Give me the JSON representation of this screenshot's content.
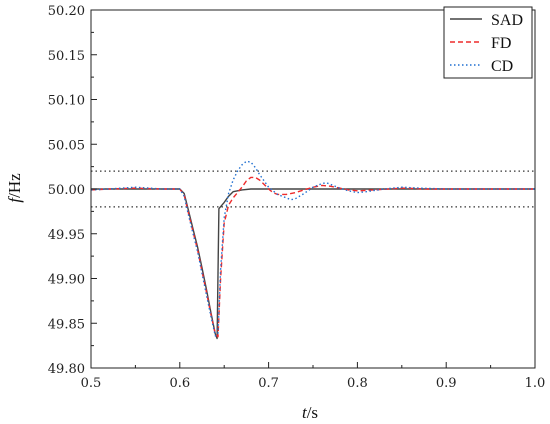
{
  "chart_data": {
    "type": "line",
    "xlabel": {
      "italic": "t",
      "unit": "/s"
    },
    "ylabel": {
      "italic": "f",
      "unit": "/Hz"
    },
    "xlim": [
      0.5,
      1.0
    ],
    "ylim": [
      49.8,
      50.2
    ],
    "x_ticks": [
      "0.5",
      "0.6",
      "0.7",
      "0.8",
      "0.9",
      "1.0"
    ],
    "y_ticks": [
      "49.80",
      "49.85",
      "49.90",
      "49.95",
      "50.00",
      "50.05",
      "50.10",
      "50.15",
      "50.20"
    ],
    "legend_position": "top-right",
    "reference_lines": [
      50.02,
      49.98
    ],
    "series": [
      {
        "name": "SAD",
        "color": "#444444",
        "style": "solid",
        "points": [
          [
            0.5,
            50.0
          ],
          [
            0.55,
            50.0
          ],
          [
            0.6,
            50.0
          ],
          [
            0.605,
            49.995
          ],
          [
            0.61,
            49.975
          ],
          [
            0.615,
            49.955
          ],
          [
            0.62,
            49.935
          ],
          [
            0.625,
            49.912
          ],
          [
            0.63,
            49.888
          ],
          [
            0.635,
            49.862
          ],
          [
            0.64,
            49.838
          ],
          [
            0.642,
            49.833
          ],
          [
            0.644,
            49.978
          ],
          [
            0.65,
            49.985
          ],
          [
            0.655,
            49.992
          ],
          [
            0.66,
            49.997
          ],
          [
            0.67,
            49.999
          ],
          [
            0.68,
            50.0
          ],
          [
            0.7,
            50.0
          ],
          [
            1.0,
            50.0
          ]
        ]
      },
      {
        "name": "FD",
        "color": "#ee2b2b",
        "style": "dashed",
        "points": [
          [
            0.5,
            49.999
          ],
          [
            0.52,
            50.0
          ],
          [
            0.55,
            50.001
          ],
          [
            0.58,
            50.0
          ],
          [
            0.6,
            50.0
          ],
          [
            0.605,
            49.993
          ],
          [
            0.61,
            49.972
          ],
          [
            0.615,
            49.952
          ],
          [
            0.62,
            49.932
          ],
          [
            0.625,
            49.908
          ],
          [
            0.63,
            49.885
          ],
          [
            0.635,
            49.86
          ],
          [
            0.64,
            49.838
          ],
          [
            0.643,
            49.835
          ],
          [
            0.646,
            49.9
          ],
          [
            0.65,
            49.962
          ],
          [
            0.655,
            49.982
          ],
          [
            0.66,
            49.99
          ],
          [
            0.665,
            49.996
          ],
          [
            0.67,
            50.002
          ],
          [
            0.675,
            50.009
          ],
          [
            0.68,
            50.013
          ],
          [
            0.685,
            50.013
          ],
          [
            0.69,
            50.01
          ],
          [
            0.695,
            50.005
          ],
          [
            0.7,
            50.0
          ],
          [
            0.705,
            49.996
          ],
          [
            0.71,
            49.994
          ],
          [
            0.72,
            49.994
          ],
          [
            0.73,
            49.996
          ],
          [
            0.74,
            49.999
          ],
          [
            0.75,
            50.002
          ],
          [
            0.76,
            50.004
          ],
          [
            0.77,
            50.003
          ],
          [
            0.78,
            50.001
          ],
          [
            0.79,
            49.999
          ],
          [
            0.8,
            49.998
          ],
          [
            0.82,
            49.999
          ],
          [
            0.85,
            50.001
          ],
          [
            0.88,
            50.0
          ],
          [
            0.9,
            50.0
          ],
          [
            1.0,
            50.0
          ]
        ]
      },
      {
        "name": "CD",
        "color": "#1f6fd1",
        "style": "dotted",
        "points": [
          [
            0.5,
            49.999
          ],
          [
            0.52,
            50.0
          ],
          [
            0.55,
            50.002
          ],
          [
            0.58,
            50.0
          ],
          [
            0.6,
            50.0
          ],
          [
            0.605,
            49.992
          ],
          [
            0.61,
            49.97
          ],
          [
            0.615,
            49.95
          ],
          [
            0.62,
            49.93
          ],
          [
            0.625,
            49.906
          ],
          [
            0.63,
            49.882
          ],
          [
            0.635,
            49.858
          ],
          [
            0.64,
            49.836
          ],
          [
            0.643,
            49.838
          ],
          [
            0.646,
            49.91
          ],
          [
            0.65,
            49.968
          ],
          [
            0.655,
            49.995
          ],
          [
            0.66,
            50.01
          ],
          [
            0.665,
            50.02
          ],
          [
            0.67,
            50.027
          ],
          [
            0.675,
            50.031
          ],
          [
            0.68,
            50.03
          ],
          [
            0.685,
            50.024
          ],
          [
            0.69,
            50.016
          ],
          [
            0.7,
            50.002
          ],
          [
            0.71,
            49.994
          ],
          [
            0.72,
            49.99
          ],
          [
            0.725,
            49.988
          ],
          [
            0.73,
            49.989
          ],
          [
            0.74,
            49.995
          ],
          [
            0.75,
            50.002
          ],
          [
            0.76,
            50.006
          ],
          [
            0.765,
            50.007
          ],
          [
            0.77,
            50.005
          ],
          [
            0.78,
            50.001
          ],
          [
            0.79,
            49.998
          ],
          [
            0.8,
            49.996
          ],
          [
            0.81,
            49.997
          ],
          [
            0.83,
            50.0
          ],
          [
            0.85,
            50.002
          ],
          [
            0.87,
            50.001
          ],
          [
            0.9,
            50.0
          ],
          [
            1.0,
            50.0
          ]
        ]
      }
    ]
  }
}
